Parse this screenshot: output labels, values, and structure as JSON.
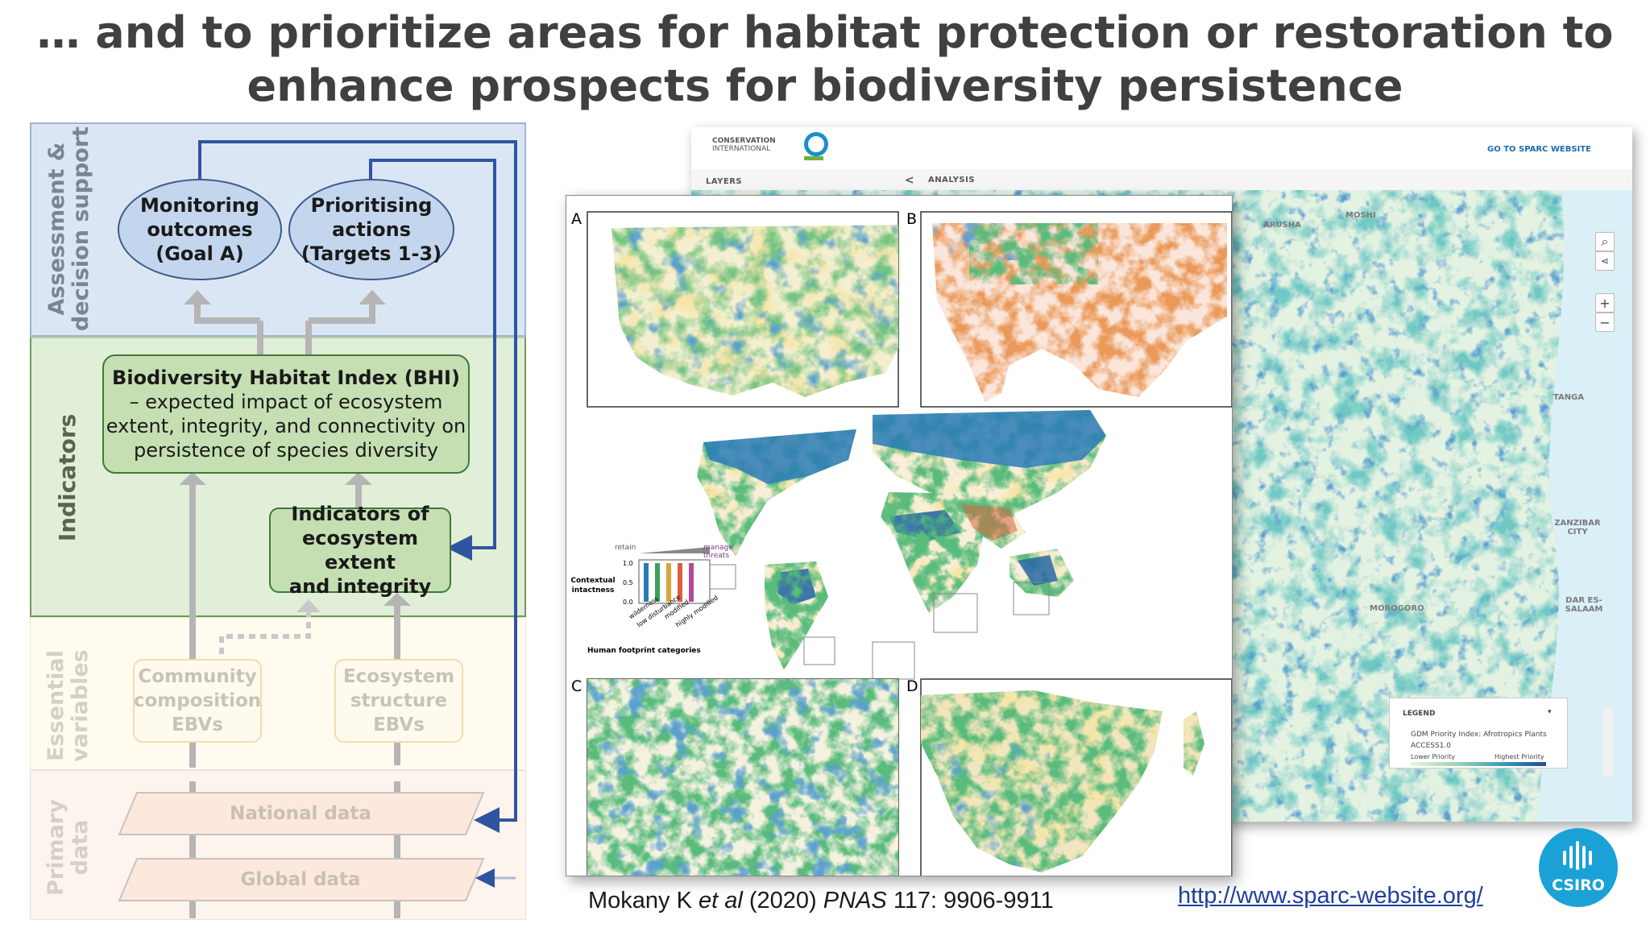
{
  "slide": {
    "title_line1": "… and to prioritize areas for habitat protection or restoration to",
    "title_line2": "enhance prospects for biodiversity persistence"
  },
  "diagram": {
    "bands": {
      "assessment": "Assessment & decision support",
      "indicators": "Indicators",
      "essential": "Essential variables",
      "primary": "Primary data"
    },
    "monitoring": [
      "Monitoring",
      "outcomes",
      "(Goal A)"
    ],
    "prioritising": [
      "Prioritising",
      "actions",
      "(Targets 1-3)"
    ],
    "bhi": {
      "title": "Biodiversity Habitat Index (BHI)",
      "lines": [
        "– expected  impact of ecosystem",
        "extent, integrity, and connectivity on",
        "persistence of species diversity"
      ]
    },
    "ecosystem_indicators": [
      "Indicators of",
      "ecosystem extent",
      "and integrity"
    ],
    "community_ebv": [
      "Community",
      "composition",
      "EBVs"
    ],
    "ecosystem_ebv": [
      "Ecosystem",
      "structure",
      "EBVs"
    ],
    "national_data": "National data",
    "global_data": "Global data",
    "colors": {
      "assessment_bg": "#dbe6f5",
      "indicators_bg": "#e1efd8",
      "essential_bg": "#fffbef",
      "primary_bg": "#fdf4ee",
      "arrow_blue": "#2f55a0",
      "arrow_grey": "#b5b5b5"
    }
  },
  "figure": {
    "panel_letters": [
      "A",
      "B",
      "C",
      "D"
    ],
    "legend": {
      "retain": "retain",
      "manage": "manage threats",
      "axis_title": "Contextual intactness",
      "ticks": [
        "1.0",
        "0.5",
        "0.0"
      ],
      "categories": [
        "wilderness",
        "low disturbance",
        "modified",
        "highly modified"
      ],
      "footer": "Human footprint categories"
    }
  },
  "sparc": {
    "org_line1": "CONSERVATION",
    "org_line2": "INTERNATIONAL",
    "goto": "GO TO SPARC WEBSITE",
    "layers": "LAYERS",
    "analysis": "ANALYSIS",
    "chevron": "<",
    "places": [
      "ARUSHA",
      "MOSHI",
      "TANGA",
      "ZANZIBAR CITY",
      "MOROGORO",
      "DAR ES-SALAAM"
    ],
    "legend_title": "LEGEND",
    "legend_layer": "GDM Priority Index: Afrotropics Plants",
    "legend_model": "ACCESS1.0",
    "legend_low": "Lower Priority",
    "legend_high": "Highest Priority"
  },
  "footer": {
    "citation_pre": "Mokany K ",
    "citation_etal": "et al",
    "citation_mid": " (2020) ",
    "citation_journal": "PNAS",
    "citation_post": " 117: 9906-9911",
    "url": "http://www.sparc-website.org/",
    "logo": "CSIRO"
  }
}
